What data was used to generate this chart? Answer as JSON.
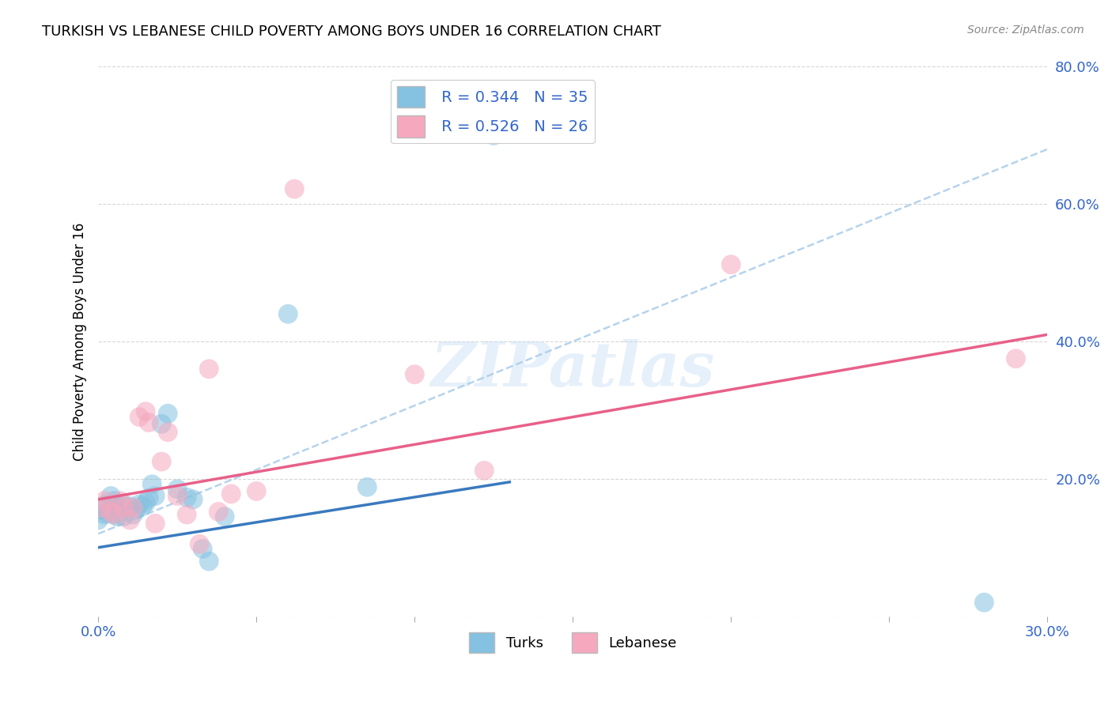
{
  "title": "TURKISH VS LEBANESE CHILD POVERTY AMONG BOYS UNDER 16 CORRELATION CHART",
  "source": "Source: ZipAtlas.com",
  "ylabel": "Child Poverty Among Boys Under 16",
  "xlim": [
    0.0,
    0.3
  ],
  "ylim": [
    0.0,
    0.8
  ],
  "xticks": [
    0.0,
    0.05,
    0.1,
    0.15,
    0.2,
    0.25,
    0.3
  ],
  "yticks": [
    0.0,
    0.2,
    0.4,
    0.6,
    0.8
  ],
  "xticklabels": [
    "0.0%",
    "",
    "",
    "",
    "",
    "",
    "30.0%"
  ],
  "yticklabels": [
    "",
    "20.0%",
    "40.0%",
    "60.0%",
    "80.0%"
  ],
  "turks_R": 0.344,
  "turks_N": 35,
  "lebanese_R": 0.526,
  "lebanese_N": 26,
  "turks_color": "#85c1e0",
  "lebanese_color": "#f5a8be",
  "turks_line_color": "#3a7abf",
  "lebanese_line_color": "#e8608a",
  "axis_color": "#3366cc",
  "grid_color": "#cccccc",
  "watermark": "ZIPatlas",
  "turks_x": [
    0.0,
    0.001,
    0.002,
    0.002,
    0.003,
    0.004,
    0.004,
    0.005,
    0.005,
    0.006,
    0.007,
    0.008,
    0.008,
    0.009,
    0.01,
    0.011,
    0.012,
    0.013,
    0.014,
    0.015,
    0.016,
    0.017,
    0.018,
    0.02,
    0.022,
    0.025,
    0.028,
    0.03,
    0.033,
    0.035,
    0.04,
    0.06,
    0.085,
    0.125,
    0.28
  ],
  "turks_y": [
    0.14,
    0.155,
    0.148,
    0.162,
    0.15,
    0.16,
    0.175,
    0.148,
    0.168,
    0.145,
    0.16,
    0.145,
    0.162,
    0.155,
    0.16,
    0.148,
    0.155,
    0.163,
    0.16,
    0.165,
    0.172,
    0.192,
    0.175,
    0.28,
    0.295,
    0.185,
    0.173,
    0.17,
    0.098,
    0.08,
    0.145,
    0.44,
    0.188,
    0.7,
    0.02
  ],
  "lebanese_x": [
    0.001,
    0.002,
    0.004,
    0.005,
    0.007,
    0.008,
    0.01,
    0.011,
    0.013,
    0.015,
    0.016,
    0.018,
    0.02,
    0.022,
    0.025,
    0.028,
    0.032,
    0.035,
    0.038,
    0.042,
    0.05,
    0.062,
    0.1,
    0.122,
    0.2,
    0.29
  ],
  "lebanese_y": [
    0.158,
    0.168,
    0.152,
    0.148,
    0.168,
    0.158,
    0.14,
    0.158,
    0.29,
    0.298,
    0.282,
    0.135,
    0.225,
    0.268,
    0.175,
    0.148,
    0.105,
    0.36,
    0.152,
    0.178,
    0.182,
    0.622,
    0.352,
    0.212,
    0.512,
    0.375
  ],
  "turks_trendline_x": [
    0.0,
    0.3
  ],
  "turks_trendline_y": [
    0.1,
    0.32
  ],
  "lebanese_trendline_x": [
    0.0,
    0.3
  ],
  "lebanese_trendline_y": [
    0.17,
    0.41
  ],
  "dashed_line_x": [
    0.0,
    0.3
  ],
  "dashed_line_y": [
    0.12,
    0.68
  ]
}
